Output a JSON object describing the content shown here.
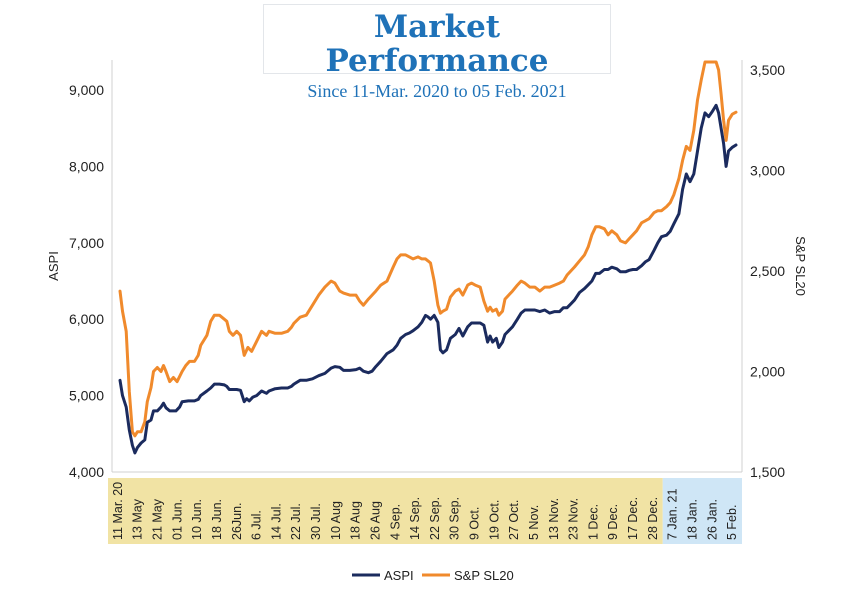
{
  "chart_data": {
    "type": "line",
    "title": "Market Performance",
    "subtitle": "Since 11-Mar. 2020 to 05 Feb. 2021",
    "ylabel_left": "ASPI",
    "ylabel_right": "S&P SL20",
    "ylim_left": [
      4000,
      9000
    ],
    "ylim_right": [
      1500,
      3500
    ],
    "yticks_left": [
      "4,000",
      "5,000",
      "6,000",
      "7,000",
      "8,000",
      "9,000"
    ],
    "yticks_left_values": [
      4000,
      5000,
      6000,
      7000,
      8000,
      9000
    ],
    "yticks_right": [
      "1,500",
      "2,000",
      "2,500",
      "3,000",
      "3,500"
    ],
    "yticks_right_values": [
      1500,
      2000,
      2500,
      3000,
      3500
    ],
    "xticks": [
      "11 Mar. 20",
      "13 May",
      "21 May",
      "01 Jun.",
      "10 Jun.",
      "18 Jun.",
      "26Jun.",
      "6 Jul.",
      "14 Jul.",
      "22 Jul.",
      "30 Jul.",
      "10 Aug",
      "18 Aug",
      "26 Aug",
      "4 Sep.",
      "14 Sep.",
      "22 Sep.",
      "30 Sep.",
      "9 Oct.",
      "19 Oct.",
      "27 Oct.",
      "5 Nov.",
      "13 Nov.",
      "23 Nov.",
      "1 Dec.",
      "9 Dec.",
      "17 Dec.",
      "28 Dec.",
      "7 Jan. 21",
      "18 Jan.",
      "26 Jan.",
      "5 Feb."
    ],
    "xtick_band_split": 28,
    "grid": false,
    "legend": "bottom-center",
    "series": [
      {
        "name": "ASPI",
        "axis": "left",
        "color": "#1b2b5e",
        "points": [
          [
            0,
            5200
          ],
          [
            0.2,
            5000
          ],
          [
            0.5,
            4850
          ],
          [
            0.75,
            4550
          ],
          [
            1,
            4350
          ],
          [
            1.2,
            4250
          ],
          [
            1.4,
            4320
          ],
          [
            1.7,
            4380
          ],
          [
            2,
            4420
          ],
          [
            2.2,
            4650
          ],
          [
            2.5,
            4680
          ],
          [
            2.7,
            4800
          ],
          [
            3,
            4800
          ],
          [
            3.3,
            4850
          ],
          [
            3.5,
            4900
          ],
          [
            3.7,
            4840
          ],
          [
            4,
            4800
          ],
          [
            4.5,
            4800
          ],
          [
            4.8,
            4850
          ],
          [
            5,
            4920
          ],
          [
            5.5,
            4930
          ],
          [
            6,
            4930
          ],
          [
            6.3,
            4950
          ],
          [
            6.5,
            5000
          ],
          [
            7,
            5060
          ],
          [
            7.3,
            5100
          ],
          [
            7.6,
            5150
          ],
          [
            8,
            5150
          ],
          [
            8.4,
            5140
          ],
          [
            8.6,
            5120
          ],
          [
            8.8,
            5080
          ],
          [
            9.1,
            5080
          ],
          [
            9.4,
            5080
          ],
          [
            9.7,
            5070
          ],
          [
            10,
            4920
          ],
          [
            10.2,
            4960
          ],
          [
            10.4,
            4930
          ],
          [
            10.7,
            4980
          ],
          [
            11,
            5000
          ],
          [
            11.4,
            5060
          ],
          [
            11.8,
            5030
          ],
          [
            12,
            5060
          ],
          [
            12.5,
            5090
          ],
          [
            13,
            5100
          ],
          [
            13.5,
            5100
          ],
          [
            13.8,
            5120
          ],
          [
            14,
            5150
          ],
          [
            14.5,
            5200
          ],
          [
            15,
            5200
          ],
          [
            15.5,
            5220
          ],
          [
            16,
            5260
          ],
          [
            16.5,
            5290
          ],
          [
            17,
            5360
          ],
          [
            17.3,
            5380
          ],
          [
            17.7,
            5370
          ],
          [
            18,
            5330
          ],
          [
            18.5,
            5330
          ],
          [
            19,
            5340
          ],
          [
            19.3,
            5360
          ],
          [
            19.6,
            5320
          ],
          [
            20,
            5300
          ],
          [
            20.3,
            5320
          ],
          [
            20.6,
            5380
          ],
          [
            21,
            5450
          ],
          [
            21.5,
            5550
          ],
          [
            22,
            5600
          ],
          [
            22.3,
            5660
          ],
          [
            22.6,
            5750
          ],
          [
            23,
            5800
          ],
          [
            23.3,
            5820
          ],
          [
            23.6,
            5850
          ],
          [
            24,
            5900
          ],
          [
            24.3,
            5960
          ],
          [
            24.6,
            6050
          ],
          [
            24.8,
            6030
          ],
          [
            25,
            6000
          ],
          [
            25.3,
            6050
          ],
          [
            25.6,
            5960
          ],
          [
            25.8,
            5600
          ],
          [
            26,
            5560
          ],
          [
            26.3,
            5600
          ],
          [
            26.6,
            5750
          ],
          [
            27,
            5800
          ],
          [
            27.3,
            5880
          ],
          [
            27.6,
            5780
          ],
          [
            28,
            5900
          ],
          [
            28.3,
            5950
          ],
          [
            28.6,
            5950
          ],
          [
            29,
            5950
          ],
          [
            29.3,
            5920
          ],
          [
            29.6,
            5700
          ],
          [
            29.8,
            5780
          ],
          [
            30,
            5700
          ],
          [
            30.3,
            5750
          ],
          [
            30.5,
            5630
          ],
          [
            30.8,
            5700
          ],
          [
            31,
            5800
          ],
          [
            31.3,
            5850
          ],
          [
            31.6,
            5900
          ],
          [
            32,
            6000
          ],
          [
            32.3,
            6080
          ],
          [
            32.6,
            6120
          ],
          [
            33,
            6120
          ],
          [
            33.4,
            6120
          ],
          [
            33.8,
            6100
          ],
          [
            34.2,
            6120
          ],
          [
            34.6,
            6080
          ],
          [
            35,
            6100
          ],
          [
            35.4,
            6100
          ],
          [
            35.7,
            6150
          ],
          [
            36,
            6150
          ],
          [
            36.3,
            6200
          ],
          [
            36.6,
            6250
          ],
          [
            37,
            6350
          ],
          [
            37.4,
            6400
          ],
          [
            37.7,
            6450
          ],
          [
            38,
            6500
          ],
          [
            38.3,
            6600
          ],
          [
            38.6,
            6600
          ],
          [
            39,
            6650
          ],
          [
            39.3,
            6650
          ],
          [
            39.6,
            6680
          ],
          [
            40,
            6660
          ],
          [
            40.3,
            6620
          ],
          [
            40.7,
            6620
          ],
          [
            41,
            6640
          ],
          [
            41.3,
            6650
          ],
          [
            41.6,
            6650
          ],
          [
            42,
            6700
          ],
          [
            42.3,
            6750
          ],
          [
            42.6,
            6780
          ],
          [
            43,
            6900
          ],
          [
            43.3,
            7000
          ],
          [
            43.6,
            7080
          ],
          [
            44,
            7100
          ],
          [
            44.3,
            7150
          ],
          [
            44.6,
            7250
          ],
          [
            45,
            7380
          ],
          [
            45.3,
            7700
          ],
          [
            45.6,
            7900
          ],
          [
            45.9,
            7800
          ],
          [
            46.2,
            7900
          ],
          [
            46.5,
            8200
          ],
          [
            46.8,
            8500
          ],
          [
            47.1,
            8700
          ],
          [
            47.4,
            8650
          ],
          [
            47.7,
            8720
          ],
          [
            48,
            8800
          ],
          [
            48.2,
            8700
          ],
          [
            48.4,
            8500
          ],
          [
            48.6,
            8300
          ],
          [
            48.8,
            8000
          ],
          [
            49,
            8200
          ],
          [
            49.3,
            8250
          ],
          [
            49.6,
            8280
          ]
        ]
      },
      {
        "name": "S&P SL20",
        "axis": "right",
        "color": "#f08a2c",
        "points": [
          [
            0,
            2400
          ],
          [
            0.2,
            2300
          ],
          [
            0.5,
            2200
          ],
          [
            0.75,
            1900
          ],
          [
            1,
            1700
          ],
          [
            1.2,
            1680
          ],
          [
            1.4,
            1700
          ],
          [
            1.7,
            1700
          ],
          [
            2,
            1750
          ],
          [
            2.2,
            1850
          ],
          [
            2.5,
            1920
          ],
          [
            2.7,
            2000
          ],
          [
            3,
            2020
          ],
          [
            3.3,
            2000
          ],
          [
            3.5,
            2030
          ],
          [
            3.7,
            2000
          ],
          [
            4,
            1950
          ],
          [
            4.3,
            1970
          ],
          [
            4.6,
            1950
          ],
          [
            5,
            2000
          ],
          [
            5.3,
            2030
          ],
          [
            5.6,
            2050
          ],
          [
            6,
            2050
          ],
          [
            6.3,
            2080
          ],
          [
            6.5,
            2130
          ],
          [
            7,
            2180
          ],
          [
            7.3,
            2250
          ],
          [
            7.6,
            2280
          ],
          [
            8,
            2280
          ],
          [
            8.4,
            2260
          ],
          [
            8.6,
            2250
          ],
          [
            8.8,
            2200
          ],
          [
            9.1,
            2180
          ],
          [
            9.4,
            2200
          ],
          [
            9.7,
            2180
          ],
          [
            10,
            2080
          ],
          [
            10.3,
            2120
          ],
          [
            10.6,
            2100
          ],
          [
            11,
            2150
          ],
          [
            11.4,
            2200
          ],
          [
            11.8,
            2180
          ],
          [
            12,
            2200
          ],
          [
            12.5,
            2190
          ],
          [
            13,
            2190
          ],
          [
            13.5,
            2200
          ],
          [
            13.8,
            2220
          ],
          [
            14,
            2240
          ],
          [
            14.5,
            2270
          ],
          [
            15,
            2280
          ],
          [
            15.5,
            2330
          ],
          [
            16,
            2380
          ],
          [
            16.5,
            2420
          ],
          [
            17,
            2450
          ],
          [
            17.3,
            2440
          ],
          [
            17.7,
            2400
          ],
          [
            18,
            2390
          ],
          [
            18.5,
            2380
          ],
          [
            19,
            2380
          ],
          [
            19.3,
            2350
          ],
          [
            19.6,
            2330
          ],
          [
            20,
            2360
          ],
          [
            20.3,
            2380
          ],
          [
            20.6,
            2400
          ],
          [
            21,
            2430
          ],
          [
            21.5,
            2450
          ],
          [
            22,
            2520
          ],
          [
            22.3,
            2560
          ],
          [
            22.6,
            2580
          ],
          [
            23,
            2580
          ],
          [
            23.3,
            2570
          ],
          [
            23.6,
            2560
          ],
          [
            24,
            2570
          ],
          [
            24.3,
            2560
          ],
          [
            24.6,
            2560
          ],
          [
            24.8,
            2550
          ],
          [
            25,
            2540
          ],
          [
            25.3,
            2450
          ],
          [
            25.6,
            2330
          ],
          [
            25.8,
            2290
          ],
          [
            26,
            2300
          ],
          [
            26.3,
            2310
          ],
          [
            26.6,
            2370
          ],
          [
            27,
            2400
          ],
          [
            27.3,
            2410
          ],
          [
            27.6,
            2380
          ],
          [
            28,
            2430
          ],
          [
            28.3,
            2440
          ],
          [
            28.6,
            2430
          ],
          [
            29,
            2420
          ],
          [
            29.3,
            2350
          ],
          [
            29.6,
            2300
          ],
          [
            29.8,
            2320
          ],
          [
            30,
            2300
          ],
          [
            30.3,
            2310
          ],
          [
            30.5,
            2280
          ],
          [
            30.8,
            2300
          ],
          [
            31,
            2360
          ],
          [
            31.3,
            2380
          ],
          [
            31.6,
            2400
          ],
          [
            32,
            2430
          ],
          [
            32.3,
            2450
          ],
          [
            32.6,
            2440
          ],
          [
            33,
            2420
          ],
          [
            33.4,
            2420
          ],
          [
            33.8,
            2400
          ],
          [
            34.2,
            2420
          ],
          [
            34.6,
            2420
          ],
          [
            35,
            2430
          ],
          [
            35.4,
            2440
          ],
          [
            35.7,
            2450
          ],
          [
            36,
            2480
          ],
          [
            36.3,
            2500
          ],
          [
            36.6,
            2520
          ],
          [
            37,
            2550
          ],
          [
            37.4,
            2580
          ],
          [
            37.7,
            2620
          ],
          [
            38,
            2680
          ],
          [
            38.3,
            2720
          ],
          [
            38.6,
            2720
          ],
          [
            39,
            2710
          ],
          [
            39.3,
            2680
          ],
          [
            39.6,
            2700
          ],
          [
            40,
            2680
          ],
          [
            40.3,
            2650
          ],
          [
            40.7,
            2640
          ],
          [
            41,
            2660
          ],
          [
            41.3,
            2680
          ],
          [
            41.6,
            2700
          ],
          [
            42,
            2740
          ],
          [
            42.3,
            2750
          ],
          [
            42.6,
            2760
          ],
          [
            43,
            2790
          ],
          [
            43.3,
            2800
          ],
          [
            43.6,
            2800
          ],
          [
            44,
            2820
          ],
          [
            44.3,
            2840
          ],
          [
            44.6,
            2880
          ],
          [
            45,
            2960
          ],
          [
            45.3,
            3050
          ],
          [
            45.6,
            3120
          ],
          [
            45.9,
            3100
          ],
          [
            46.2,
            3200
          ],
          [
            46.5,
            3350
          ],
          [
            46.8,
            3450
          ],
          [
            47.1,
            3540
          ],
          [
            47.4,
            3540
          ],
          [
            47.7,
            3540
          ],
          [
            48,
            3540
          ],
          [
            48.2,
            3500
          ],
          [
            48.4,
            3380
          ],
          [
            48.6,
            3250
          ],
          [
            48.8,
            3150
          ],
          [
            49,
            3250
          ],
          [
            49.3,
            3280
          ],
          [
            49.6,
            3290
          ]
        ]
      }
    ]
  }
}
